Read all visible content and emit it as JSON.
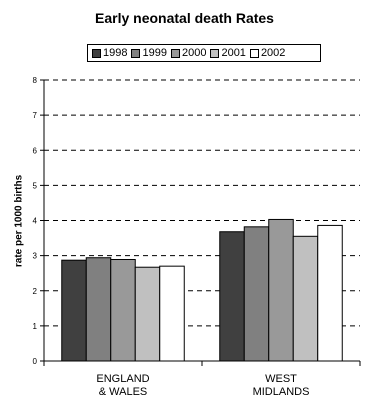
{
  "chart_data": {
    "type": "bar",
    "title": "Early neonatal death Rates",
    "ylabel": "rate per 1000 births",
    "xlabel": "",
    "categories": [
      "ENGLAND\n& WALES",
      "WEST\nMIDLANDS"
    ],
    "series": [
      {
        "name": "1998",
        "values": [
          2.87,
          3.68
        ],
        "color": "#404040"
      },
      {
        "name": "1999",
        "values": [
          2.94,
          3.82
        ],
        "color": "#808080"
      },
      {
        "name": "2000",
        "values": [
          2.89,
          4.03
        ],
        "color": "#999999"
      },
      {
        "name": "2001",
        "values": [
          2.67,
          3.55
        ],
        "color": "#c0c0c0"
      },
      {
        "name": "2002",
        "values": [
          2.7,
          3.86
        ],
        "color": "#ffffff"
      }
    ],
    "ylim": [
      0,
      8
    ],
    "yticks": [
      "0",
      "1",
      "2",
      "3",
      "4",
      "5",
      "6",
      "7",
      "8"
    ],
    "grid": true,
    "legend_position": "top"
  }
}
